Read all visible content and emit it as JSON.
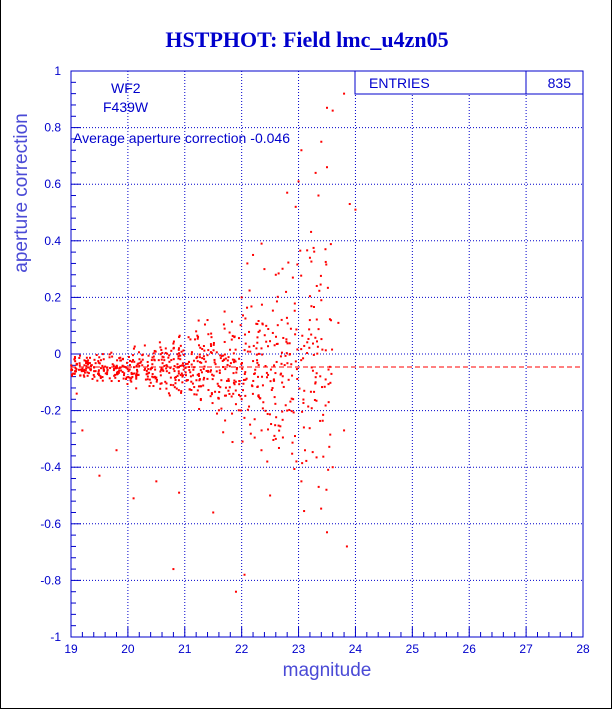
{
  "chart_data": {
    "type": "scatter",
    "title": "HSTPHOT: Field lmc_u4zn05",
    "xlabel": "magnitude",
    "ylabel": "aperture correction",
    "xlim": [
      19,
      28
    ],
    "ylim": [
      -1,
      1
    ],
    "x_ticks": [
      "19",
      "20",
      "21",
      "22",
      "23",
      "24",
      "25",
      "26",
      "27",
      "28"
    ],
    "y_ticks": [
      "-1",
      "-0.8",
      "-0.6",
      "-0.4",
      "-0.2",
      "0",
      "0.2",
      "0.4",
      "0.6",
      "0.8",
      "1"
    ],
    "grid": true,
    "point_color": "#ff0000",
    "annotations": {
      "chip": "WF2",
      "filter": "F439W",
      "average_label": "Average aperture correction",
      "average_value": "-0.046"
    },
    "reference_line": {
      "y": -0.046,
      "style": "dashed",
      "color": "#ff0000"
    },
    "stats_box": {
      "label": "ENTRIES",
      "value": "835"
    },
    "points": [
      [
        23.5,
        0.87
      ],
      [
        23.8,
        0.92
      ],
      [
        23.6,
        0.86
      ],
      [
        23.4,
        0.75
      ],
      [
        23.05,
        0.72
      ],
      [
        23.3,
        0.64
      ],
      [
        23.0,
        0.61
      ],
      [
        23.5,
        0.66
      ],
      [
        23.35,
        0.56
      ],
      [
        23.9,
        0.53
      ],
      [
        24.0,
        0.51
      ],
      [
        22.8,
        0.57
      ],
      [
        22.95,
        0.52
      ],
      [
        22.35,
        0.39
      ],
      [
        22.2,
        0.35
      ],
      [
        22.4,
        0.3
      ],
      [
        22.1,
        0.32
      ],
      [
        22.6,
        0.28
      ],
      [
        22.9,
        0.27
      ],
      [
        23.2,
        0.34
      ],
      [
        23.4,
        0.19
      ],
      [
        23.7,
        0.11
      ],
      [
        22.0,
        0.2
      ],
      [
        21.7,
        0.15
      ],
      [
        21.4,
        0.12
      ],
      [
        21.2,
        0.08
      ],
      [
        20.9,
        0.06
      ],
      [
        23.1,
        -0.13
      ],
      [
        23.3,
        -0.1
      ],
      [
        23.8,
        -0.27
      ],
      [
        23.6,
        -0.4
      ],
      [
        23.5,
        -0.63
      ],
      [
        23.85,
        -0.68
      ],
      [
        22.45,
        -0.38
      ],
      [
        22.5,
        -0.5
      ],
      [
        21.9,
        -0.84
      ],
      [
        22.05,
        -0.78
      ],
      [
        21.5,
        -0.56
      ],
      [
        20.8,
        -0.76
      ],
      [
        20.9,
        -0.49
      ],
      [
        20.5,
        -0.45
      ],
      [
        20.1,
        -0.51
      ],
      [
        19.5,
        -0.43
      ],
      [
        19.8,
        -0.34
      ],
      [
        19.2,
        -0.27
      ],
      [
        19.1,
        -0.14
      ],
      [
        23.05,
        -0.45
      ],
      [
        22.6,
        -0.3
      ],
      [
        22.8,
        -0.2
      ],
      [
        22.35,
        -0.27
      ]
    ]
  }
}
